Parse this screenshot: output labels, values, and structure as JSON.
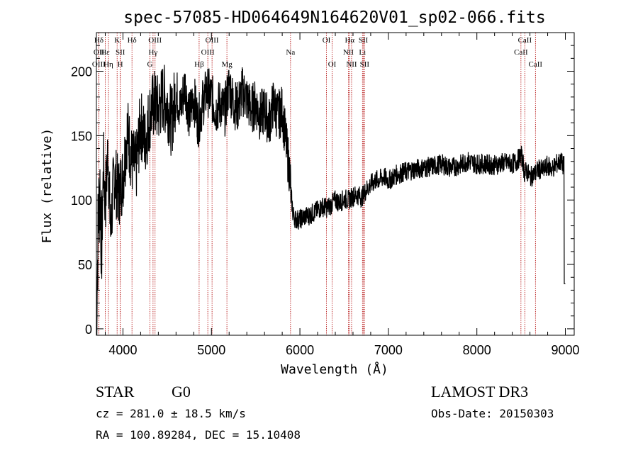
{
  "chart_data": {
    "type": "line",
    "title": "spec-57085-HD064649N164620V01_sp02-066.fits",
    "xlabel": "Wavelength (Å)",
    "ylabel": "Flux (relative)",
    "xlim": [
      3700,
      9100
    ],
    "ylim": [
      -5,
      230
    ],
    "xticks": [
      4000,
      5000,
      6000,
      7000,
      8000,
      9000
    ],
    "yticks": [
      0,
      50,
      100,
      150,
      200
    ],
    "grid": false,
    "series": [
      {
        "values_x": [
          3700,
          3720,
          3740,
          3760,
          3780,
          3800,
          3830,
          3860,
          3900,
          3950,
          4000,
          4050,
          4100,
          4150,
          4200,
          4250,
          4300,
          4350,
          4400,
          4450,
          4500,
          4550,
          4600,
          4650,
          4700,
          4750,
          4800,
          4850,
          4900,
          4950,
          5000,
          5050,
          5100,
          5150,
          5200,
          5250,
          5300,
          5350,
          5400,
          5450,
          5500,
          5550,
          5600,
          5650,
          5700,
          5750,
          5800,
          5850,
          5880,
          5900,
          5920,
          5950,
          6000,
          6050,
          6100,
          6150,
          6200,
          6250,
          6300,
          6350,
          6400,
          6450,
          6500,
          6550,
          6600,
          6650,
          6700,
          6750,
          6800,
          6850,
          6900,
          6950,
          7000,
          7100,
          7200,
          7300,
          7400,
          7500,
          7600,
          7700,
          7800,
          7900,
          8000,
          8100,
          8200,
          8300,
          8400,
          8450,
          8500,
          8520,
          8540,
          8560,
          8600,
          8650,
          8700,
          8750,
          8800,
          8850,
          8900,
          8950,
          8980,
          8990,
          9000
        ],
        "values_y": [
          0,
          85,
          110,
          60,
          130,
          95,
          140,
          75,
          120,
          105,
          118,
          155,
          130,
          125,
          160,
          145,
          165,
          175,
          170,
          180,
          175,
          160,
          185,
          170,
          190,
          165,
          180,
          160,
          175,
          185,
          180,
          170,
          175,
          168,
          190,
          175,
          172,
          185,
          178,
          170,
          175,
          165,
          170,
          160,
          175,
          165,
          170,
          140,
          125,
          105,
          90,
          85,
          85,
          87,
          88,
          90,
          92,
          95,
          94,
          96,
          100,
          98,
          101,
          100,
          103,
          104,
          102,
          108,
          112,
          115,
          116,
          118,
          115,
          120,
          122,
          124,
          125,
          126,
          128,
          125,
          127,
          130,
          128,
          128,
          127,
          129,
          128,
          130,
          135,
          130,
          120,
          123,
          118,
          120,
          124,
          123,
          127,
          124,
          128,
          130,
          126,
          128,
          35
        ]
      }
    ],
    "emission_lines": [
      {
        "name": "Hδ",
        "wavelength": 3728,
        "row": 0
      },
      {
        "name": "OII",
        "wavelength": 3728,
        "row": 1
      },
      {
        "name": "OIII",
        "wavelength": 3727,
        "row": 2
      },
      {
        "name": "Hε",
        "wavelength": 3800,
        "row": 1
      },
      {
        "name": "Hη",
        "wavelength": 3836,
        "row": 2
      },
      {
        "name": "K",
        "wavelength": 3934,
        "row": 0
      },
      {
        "name": "SII",
        "wavelength": 3970,
        "row": 1
      },
      {
        "name": "H",
        "wavelength": 3969,
        "row": 2
      },
      {
        "name": "Hδ",
        "wavelength": 4102,
        "row": 0
      },
      {
        "name": "OIII",
        "wavelength": 4363,
        "row": 0
      },
      {
        "name": "Hγ",
        "wavelength": 4340,
        "row": 1
      },
      {
        "name": "G",
        "wavelength": 4305,
        "row": 2
      },
      {
        "name": "Hβ",
        "wavelength": 4861,
        "row": 2
      },
      {
        "name": "OIII",
        "wavelength": 4959,
        "row": 1
      },
      {
        "name": "OIII",
        "wavelength": 5007,
        "row": 0
      },
      {
        "name": "Mg",
        "wavelength": 5175,
        "row": 2
      },
      {
        "name": "Na",
        "wavelength": 5894,
        "row": 1
      },
      {
        "name": "OI",
        "wavelength": 6300,
        "row": 0
      },
      {
        "name": "OI",
        "wavelength": 6364,
        "row": 2
      },
      {
        "name": "Hα",
        "wavelength": 6563,
        "row": 0
      },
      {
        "name": "NII",
        "wavelength": 6548,
        "row": 1
      },
      {
        "name": "NII",
        "wavelength": 6584,
        "row": 2
      },
      {
        "name": "SII",
        "wavelength": 6717,
        "row": 0
      },
      {
        "name": "Li",
        "wavelength": 6707,
        "row": 1
      },
      {
        "name": "SII",
        "wavelength": 6731,
        "row": 2
      },
      {
        "name": "CaII",
        "wavelength": 8542,
        "row": 0
      },
      {
        "name": "CaII",
        "wavelength": 8498,
        "row": 1
      },
      {
        "name": "CaII",
        "wavelength": 8662,
        "row": 2
      }
    ],
    "line_color": "#000000",
    "marker_color": "#b00000"
  },
  "info": {
    "class": "STAR",
    "subclass": "G0",
    "survey": "LAMOST DR3",
    "cz": "cz = 281.0 ± 18.5 km/s",
    "obs_date": "Obs-Date: 20150303",
    "radec": "RA = 100.89284, DEC =  15.10408"
  }
}
